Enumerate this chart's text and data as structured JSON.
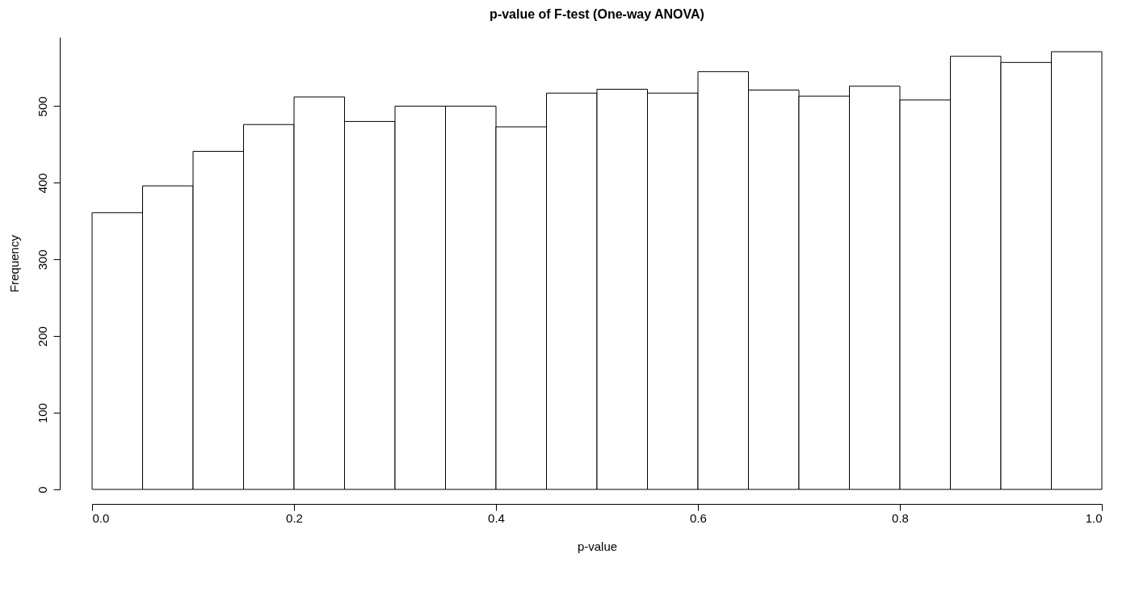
{
  "chart_data": {
    "type": "histogram",
    "title": "p-value of F-test (One-way ANOVA)",
    "xlabel": "p-value",
    "ylabel": "Frequency",
    "bins": [
      0,
      0.05,
      0.1,
      0.15,
      0.2,
      0.25,
      0.3,
      0.35,
      0.4,
      0.45,
      0.5,
      0.55,
      0.6,
      0.65,
      0.7,
      0.75,
      0.8,
      0.85,
      0.9,
      0.95,
      1
    ],
    "values": [
      361,
      396,
      441,
      476,
      512,
      480,
      500,
      500,
      473,
      517,
      522,
      517,
      545,
      521,
      513,
      526,
      508,
      565,
      557,
      571
    ],
    "color": "#ffffff",
    "xlim": [
      0,
      1
    ],
    "xticks": [
      {
        "value": 0,
        "label": "0.0"
      },
      {
        "value": 0.2,
        "label": "0.2"
      },
      {
        "value": 0.4,
        "label": "0.4"
      },
      {
        "value": 0.6,
        "label": "0.6"
      },
      {
        "value": 0.8,
        "label": "0.8"
      },
      {
        "value": 1,
        "label": "1.0"
      }
    ],
    "ylim": [
      0,
      590
    ],
    "yticks": [
      0,
      100,
      200,
      300,
      400,
      500
    ],
    "grid": false
  }
}
